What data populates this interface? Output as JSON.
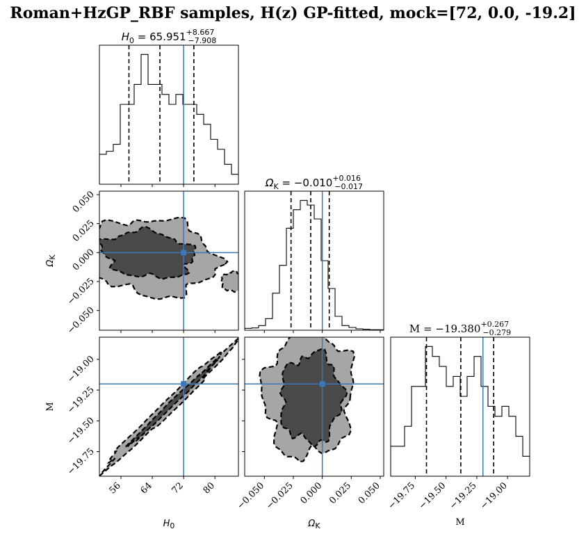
{
  "figure": {
    "title": "Roman+HzGP_RBF samples, H(z) GP-fitted, mock=[72, 0.0, -19.2]",
    "truth_color": "#3b78b5",
    "contour_inner_color": "#4a4a4a",
    "contour_outer_color": "#a6a6a6"
  },
  "chart_data": [
    {
      "type": "histogram",
      "panel": "H0 marginal",
      "title": "H_0 = 65.951 (+8.667 / -7.908)",
      "title_parts": {
        "symbol": "H",
        "sub": "0",
        "value": " = 65.951",
        "upper": "+8.667",
        "lower": "−7.908"
      },
      "xlim": [
        50.5,
        86
      ],
      "bins": {
        "edges_start": 50.5,
        "bin_width": 1.775,
        "counts": [
          3,
          3.3,
          4,
          8,
          8,
          10,
          13,
          10,
          10,
          9,
          8,
          9,
          8,
          8,
          7,
          6,
          4.5,
          3.5,
          2,
          1,
          2,
          1.2
        ]
      },
      "quantiles": [
        58.04,
        65.95,
        74.62
      ],
      "truth": 72
    },
    {
      "type": "contour",
      "panel": "Omega_K vs H0",
      "xlim": [
        50.5,
        86
      ],
      "ylim": [
        -0.067,
        0.053
      ],
      "levels": [
        "inner 1-sigma region (dark)",
        "outer 2-sigma region (light)"
      ],
      "truth": [
        72,
        0.0
      ]
    },
    {
      "type": "histogram",
      "panel": "Omega_K marginal",
      "title": "Omega_K = -0.010 (+0.016 / -0.017)",
      "title_parts": {
        "symbol": "Ω",
        "sub": "K",
        "value": " = −0.010",
        "upper": "+0.016",
        "lower": "−0.017"
      },
      "xlim": [
        -0.067,
        0.053
      ],
      "bins": {
        "edges_start": -0.067,
        "bin_width": 0.006,
        "counts": [
          0.4,
          0.5,
          1,
          2.5,
          8,
          14,
          22,
          26,
          28,
          27,
          24,
          15,
          9,
          3,
          1,
          0.6,
          0.3,
          0.2,
          0.1,
          0.1
        ]
      },
      "quantiles": [
        -0.027,
        -0.01,
        0.006
      ],
      "truth": 0.0
    },
    {
      "type": "contour",
      "panel": "M vs H0",
      "xlim": [
        50.5,
        86
      ],
      "ylim": [
        -19.95,
        -18.82
      ],
      "levels": [
        "inner 1-sigma region (dark)",
        "outer 2-sigma region (light)"
      ],
      "truth": [
        72,
        -19.2
      ]
    },
    {
      "type": "contour",
      "panel": "M vs Omega_K",
      "xlim": [
        -0.067,
        0.053
      ],
      "ylim": [
        -19.95,
        -18.82
      ],
      "levels": [
        "inner 1-sigma region (dark)",
        "outer 2-sigma region (light)"
      ],
      "truth": [
        0.0,
        -19.2
      ]
    },
    {
      "type": "histogram",
      "panel": "M marginal",
      "title": "M = -19.380 (+0.267 / -0.279)",
      "title_parts": {
        "symbol": "M",
        "sub": "",
        "value": " = −19.380",
        "upper": "+0.267",
        "lower": "−0.279"
      },
      "xlim": [
        -19.95,
        -18.82
      ],
      "bins": {
        "edges_start": -19.95,
        "bin_width": 0.0565,
        "counts": [
          3,
          3,
          5,
          9,
          9,
          13,
          12,
          11,
          9,
          10,
          8,
          10,
          12,
          9,
          7,
          6,
          7,
          6,
          4,
          2,
          2,
          3
        ]
      },
      "quantiles": [
        -19.659,
        -19.38,
        -19.113
      ],
      "truth": -19.2
    }
  ],
  "axes": {
    "h0": {
      "label": "H",
      "sub": "0",
      "ticks": [
        "56",
        "64",
        "72",
        "80"
      ],
      "tick_values": [
        56,
        64,
        72,
        80
      ]
    },
    "omk": {
      "label": "Ω",
      "sub": "K",
      "ticks": [
        "−0.050",
        "−0.025",
        "0.000",
        "0.025",
        "0.050"
      ],
      "tick_values": [
        -0.05,
        -0.025,
        0.0,
        0.025,
        0.05
      ]
    },
    "m": {
      "label": "M",
      "sub": "",
      "ticks": [
        "−19.75",
        "−19.50",
        "−19.25",
        "−19.00"
      ],
      "tick_values": [
        -19.75,
        -19.5,
        -19.25,
        -19.0
      ]
    }
  }
}
